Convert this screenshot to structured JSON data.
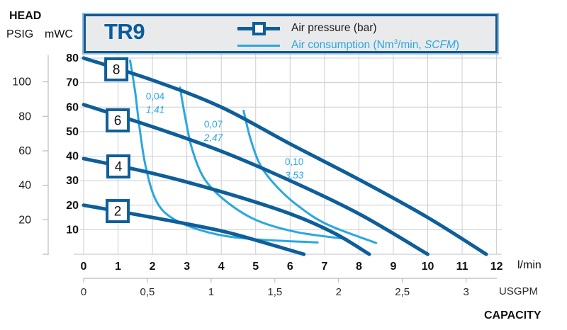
{
  "header": {
    "head_label": "HEAD",
    "psig_unit": "PSIG",
    "mwc_unit": "mWC"
  },
  "legend": {
    "title": "TR9",
    "air_pressure_label": "Air pressure (bar)",
    "air_consumption": {
      "prefix": "Air consumption (Nm",
      "sup": "3",
      "mid": "/min, ",
      "italic": "SCFM",
      "suffix": ")"
    }
  },
  "axes": {
    "lmin_unit": "l/min",
    "usgpm_unit": "USGPM",
    "capacity_label": "CAPACITY"
  },
  "colors": {
    "dark_blue": "#0e5e99",
    "light_blue": "#2aa7df",
    "grid": "#cbced2",
    "legend_bg": "#e9eaec",
    "text_dark": "#1a1a1a",
    "text_gray": "#2b2b2b"
  },
  "chart_data": {
    "type": "line",
    "title": "TR9",
    "x_axis": {
      "unit_primary": "l/min",
      "ticks_lmin": [
        0,
        1,
        2,
        3,
        4,
        5,
        6,
        7,
        8,
        9,
        10,
        11,
        12
      ],
      "unit_secondary": "USGPM",
      "ticks_usgpm": [
        {
          "value": 0,
          "label": "0"
        },
        {
          "value": 0.5,
          "label": "0,5"
        },
        {
          "value": 1,
          "label": "1"
        },
        {
          "value": 1.5,
          "label": "1,5"
        },
        {
          "value": 2,
          "label": "2"
        },
        {
          "value": 2.5,
          "label": "2,5"
        },
        {
          "value": 3,
          "label": "3"
        }
      ],
      "xlabel": "CAPACITY",
      "xlim_lmin": [
        0,
        12
      ]
    },
    "y_axis": {
      "title": "HEAD",
      "unit_left": "PSIG",
      "ticks_psig": [
        20,
        40,
        60,
        80,
        100
      ],
      "unit_right": "mWC",
      "ticks_mwc": [
        10,
        20,
        30,
        40,
        50,
        60,
        70,
        80
      ],
      "ylim_mwc": [
        0,
        80
      ],
      "psig_to_mwc": 0.703
    },
    "grid": true,
    "legend_position": "top",
    "pressure_curves": [
      {
        "pressure_bar": "8",
        "marker_at": {
          "lmin": 0.95,
          "mwc": 75.4
        },
        "points": [
          [
            0,
            80
          ],
          [
            2,
            71
          ],
          [
            4,
            60
          ],
          [
            6,
            45
          ],
          [
            8,
            30.5
          ],
          [
            10,
            15
          ],
          [
            11.7,
            0
          ]
        ]
      },
      {
        "pressure_bar": "6",
        "marker_at": {
          "lmin": 0.99,
          "mwc": 54.6
        },
        "points": [
          [
            0,
            61
          ],
          [
            2,
            52
          ],
          [
            4,
            42
          ],
          [
            6,
            30
          ],
          [
            8,
            16.5
          ],
          [
            10,
            0
          ]
        ]
      },
      {
        "pressure_bar": "4",
        "marker_at": {
          "lmin": 1.01,
          "mwc": 35.8
        },
        "points": [
          [
            0,
            39
          ],
          [
            2,
            33
          ],
          [
            4,
            25.5
          ],
          [
            6,
            16.5
          ],
          [
            7.3,
            8.5
          ],
          [
            8.3,
            0
          ]
        ]
      },
      {
        "pressure_bar": "2",
        "marker_at": {
          "lmin": 0.99,
          "mwc": 17.6
        },
        "points": [
          [
            0,
            20
          ],
          [
            2,
            15
          ],
          [
            4,
            9.5
          ],
          [
            5.3,
            4.5
          ],
          [
            6.4,
            0
          ]
        ]
      }
    ],
    "consumption_curves": [
      {
        "nm3_min": "0,04",
        "scfm": "1,41",
        "label_at": {
          "lmin": 2.08,
          "mwc": 64.2
        },
        "points": [
          [
            1.35,
            79
          ],
          [
            1.5,
            66
          ],
          [
            1.62,
            52
          ],
          [
            1.8,
            36
          ],
          [
            2.1,
            22
          ],
          [
            2.6,
            14.5
          ],
          [
            3.6,
            9
          ],
          [
            4.8,
            6.3
          ],
          [
            6.8,
            4.8
          ]
        ]
      },
      {
        "nm3_min": "0,07",
        "scfm": "2,47",
        "label_at": {
          "lmin": 3.77,
          "mwc": 52.9
        },
        "points": [
          [
            2.8,
            68
          ],
          [
            2.95,
            56
          ],
          [
            3.15,
            43
          ],
          [
            3.5,
            31
          ],
          [
            4.1,
            22
          ],
          [
            5.0,
            14
          ],
          [
            6.2,
            9
          ],
          [
            7.65,
            6.2
          ]
        ]
      },
      {
        "nm3_min": "0,10",
        "scfm": "3,53",
        "label_at": {
          "lmin": 6.12,
          "mwc": 37.6
        },
        "points": [
          [
            4.65,
            58.5
          ],
          [
            4.85,
            47
          ],
          [
            5.15,
            36
          ],
          [
            5.65,
            27
          ],
          [
            6.3,
            19
          ],
          [
            7.1,
            12
          ],
          [
            8.5,
            4.6
          ]
        ]
      }
    ]
  }
}
